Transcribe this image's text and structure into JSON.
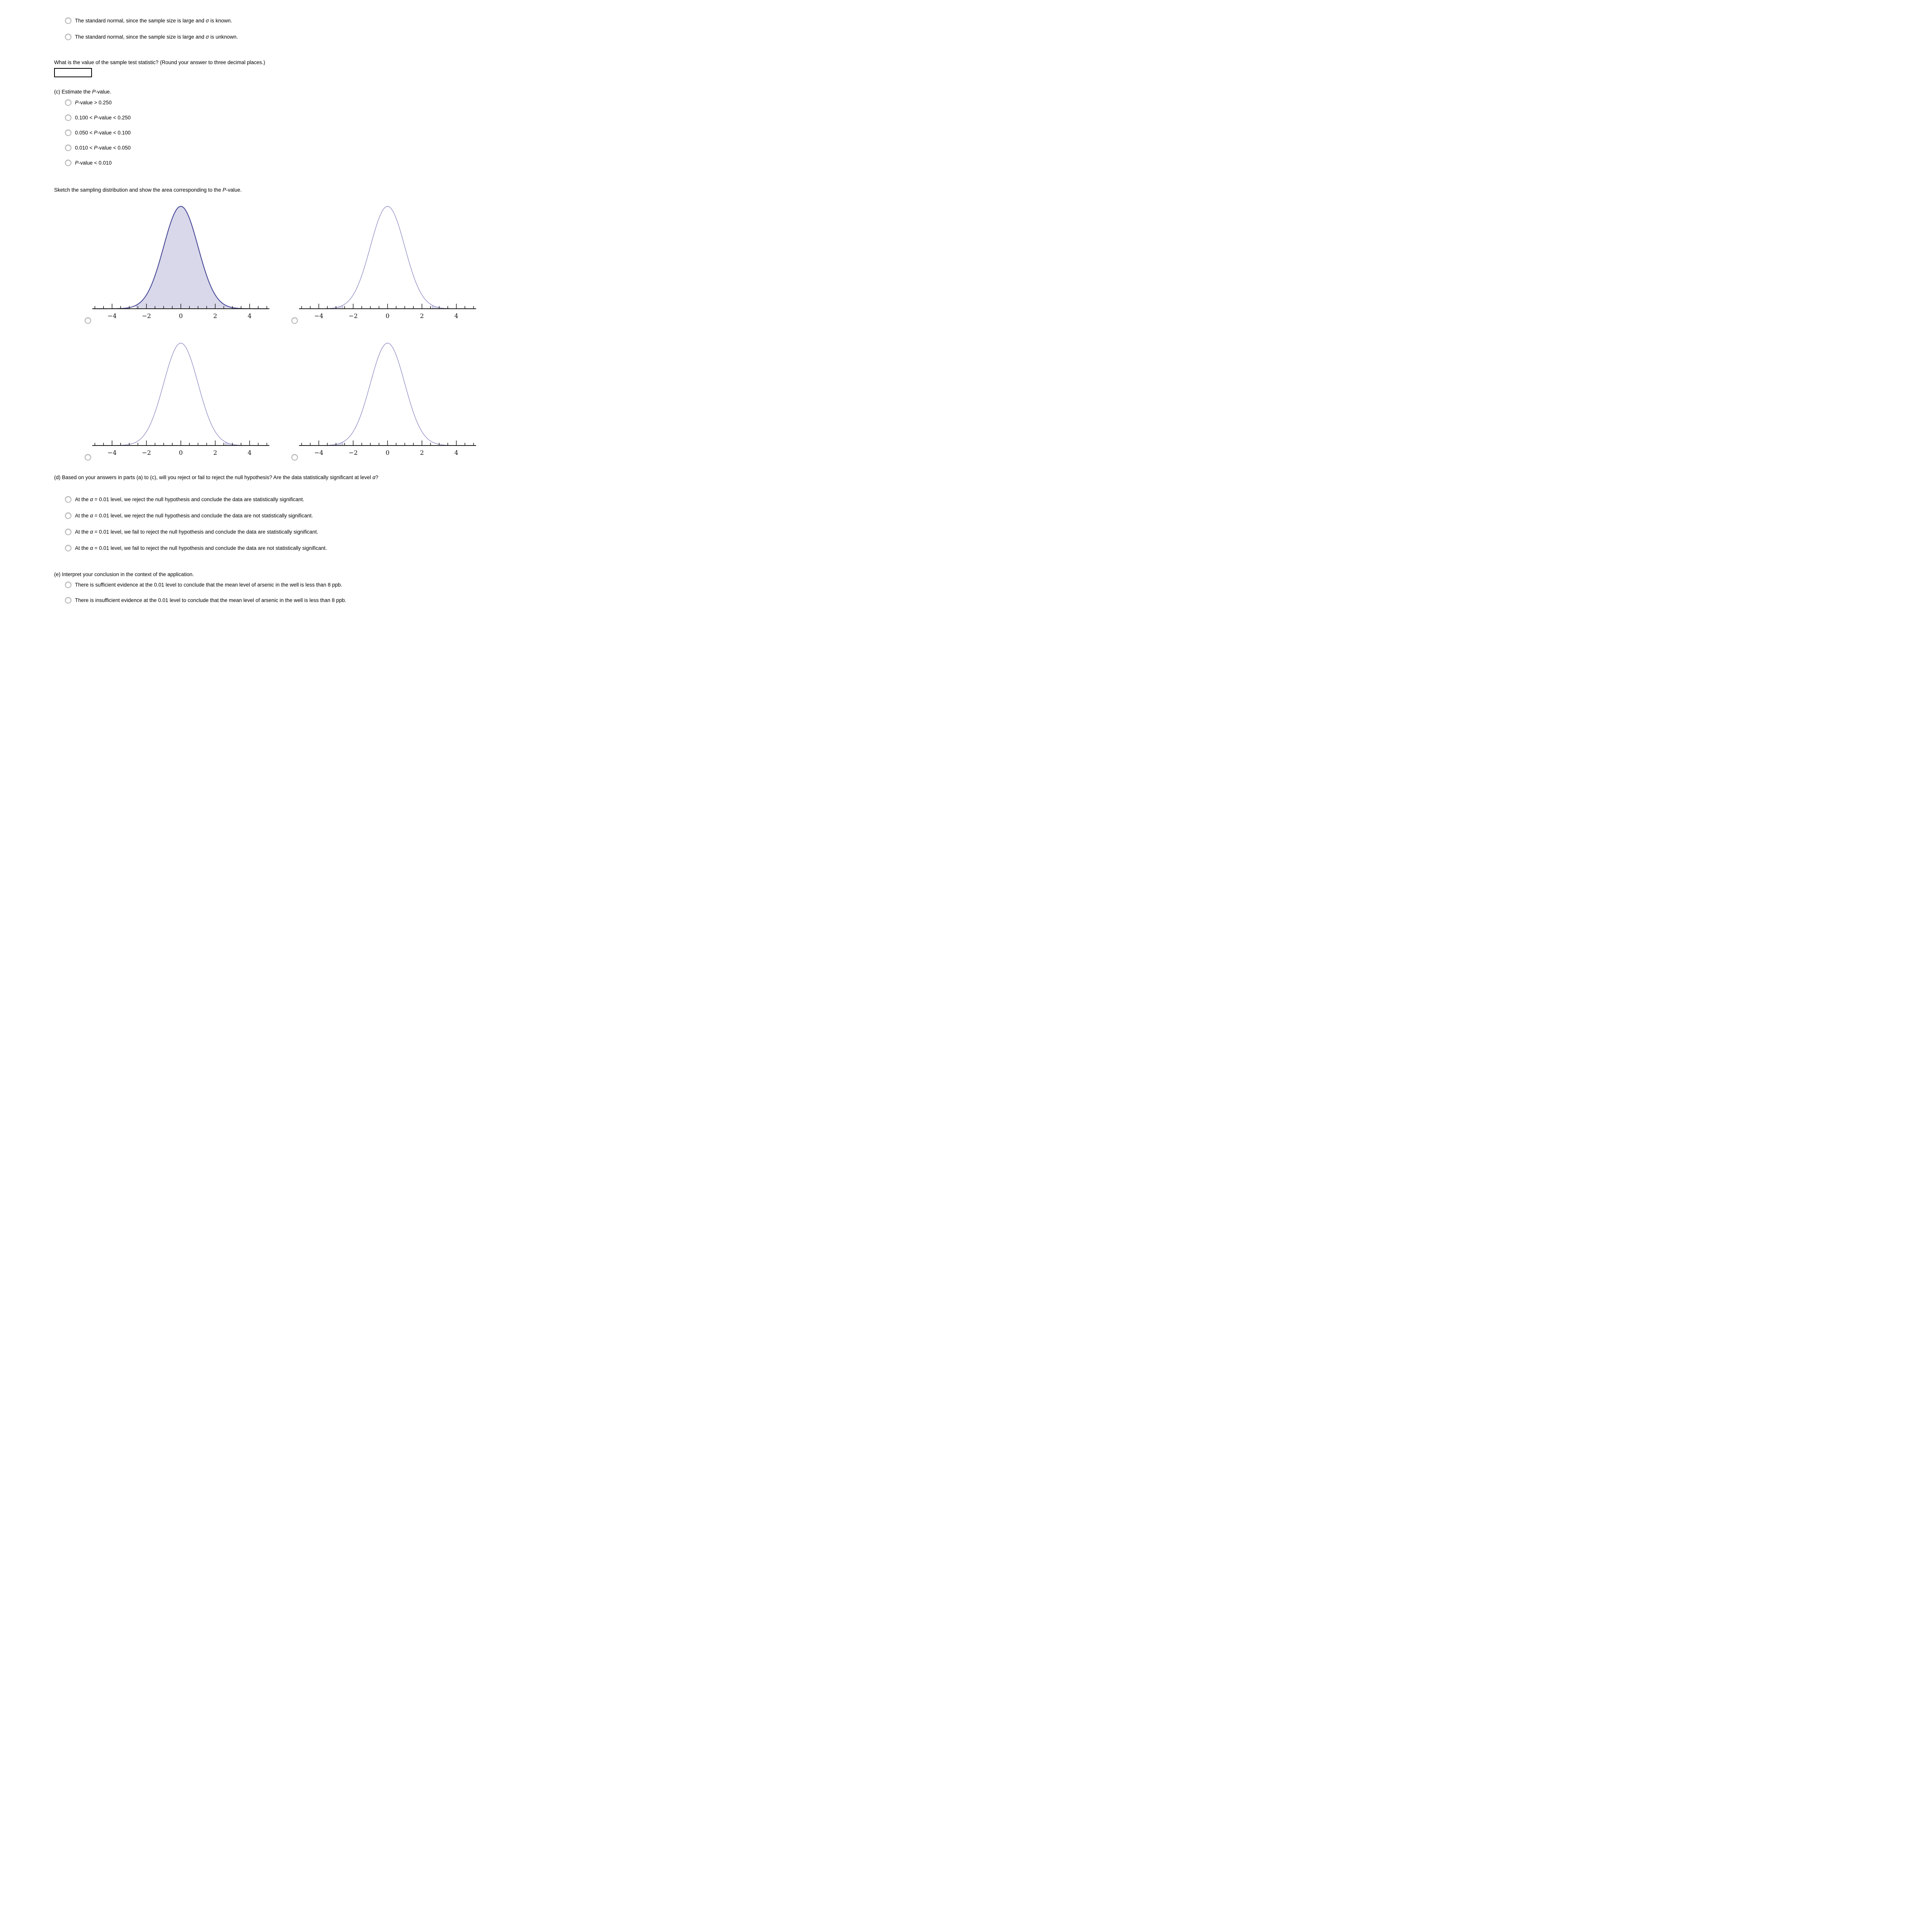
{
  "top_options": [
    [
      {
        "t": "The standard normal, since the sample size is large and "
      },
      {
        "t": "σ",
        "i": true
      },
      {
        "t": " is known."
      }
    ],
    [
      {
        "t": "The standard normal, since the sample size is large and "
      },
      {
        "t": "σ",
        "i": true
      },
      {
        "t": " is unknown."
      }
    ]
  ],
  "test_statistic": {
    "prompt": [
      {
        "t": "What is the value of the sample test statistic? (Round your answer to three decimal places.)"
      }
    ],
    "value": ""
  },
  "part_c": {
    "heading": [
      {
        "t": "(c) Estimate the "
      },
      {
        "t": "P",
        "i": true
      },
      {
        "t": "-value."
      }
    ],
    "options": [
      [
        {
          "t": "P",
          "i": true
        },
        {
          "t": "-value > 0.250"
        }
      ],
      [
        {
          "t": "0.100 < "
        },
        {
          "t": "P",
          "i": true
        },
        {
          "t": "-value < 0.250"
        }
      ],
      [
        {
          "t": "0.050 < "
        },
        {
          "t": "P",
          "i": true
        },
        {
          "t": "-value < 0.100"
        }
      ],
      [
        {
          "t": "0.010 < "
        },
        {
          "t": "P",
          "i": true
        },
        {
          "t": "-value < 0.050"
        }
      ],
      [
        {
          "t": "P",
          "i": true
        },
        {
          "t": "-value < 0.010"
        }
      ]
    ]
  },
  "sketch": {
    "heading": [
      {
        "t": "Sketch the sampling distribution and show the area corresponding to the "
      },
      {
        "t": "P",
        "i": true
      },
      {
        "t": "-value."
      }
    ]
  },
  "chart_data": {
    "type": "area",
    "description": "Four standard normal density curves used as answer choices; shaded area shows a P-value region",
    "x_range": [
      -5.15,
      5.15
    ],
    "x_tick_step": 0.5,
    "x_major_ticks": [
      -4,
      -2,
      0,
      2,
      4
    ],
    "x_tick_labels": [
      {
        "v": -4,
        "label": "−4"
      },
      {
        "v": -2,
        "label": "−2"
      },
      {
        "v": 0,
        "label": "0"
      },
      {
        "v": 2,
        "label": "2"
      },
      {
        "v": 4,
        "label": "4"
      }
    ],
    "z_cut": 2.6,
    "plots": [
      {
        "shaded_regions": [
          [
            -2.6,
            5.05
          ]
        ],
        "label": "area to the right of z = −2.6 shaded",
        "emphasis": true
      },
      {
        "shaded_regions": [
          [
            -5.05,
            -2.6
          ],
          [
            2.6,
            5.05
          ]
        ],
        "label": "both tails |z| > 2.6 shaded",
        "emphasis": false
      },
      {
        "shaded_regions": [
          [
            2.6,
            5.05
          ]
        ],
        "label": "right tail z > 2.6 shaded",
        "emphasis": false
      },
      {
        "shaded_regions": [
          [
            -5.05,
            -2.6
          ]
        ],
        "label": "left tail z < −2.6 shaded",
        "emphasis": false
      }
    ],
    "colors": {
      "curve": "#8a8ac2",
      "curve_emphasis": "#4a4a99",
      "fill": "#d8d8ea",
      "axis": "#1a1a1a",
      "tick_label": "#111111"
    }
  },
  "part_d": {
    "heading": [
      {
        "t": "(d) Based on your answers in parts (a) to (c), will you reject or fail to reject the null hypothesis? Are the data statistically significant at level "
      },
      {
        "t": "α",
        "i": true
      },
      {
        "t": "?"
      }
    ],
    "options": [
      [
        {
          "t": "At the "
        },
        {
          "t": "α",
          "i": true
        },
        {
          "t": " = 0.01 level, we reject the null hypothesis and conclude the data are statistically significant."
        }
      ],
      [
        {
          "t": "At the "
        },
        {
          "t": "α",
          "i": true
        },
        {
          "t": " = 0.01 level, we reject the null hypothesis and conclude the data are not statistically significant."
        }
      ],
      [
        {
          "t": "At the "
        },
        {
          "t": "α",
          "i": true
        },
        {
          "t": " = 0.01 level, we fail to reject the null hypothesis and conclude the data are statistically significant."
        }
      ],
      [
        {
          "t": "At the "
        },
        {
          "t": "α",
          "i": true
        },
        {
          "t": " = 0.01 level, we fail to reject the null hypothesis and conclude the data are not statistically significant."
        }
      ]
    ]
  },
  "part_e": {
    "heading": [
      {
        "t": "(e) Interpret your conclusion in the context of the application."
      }
    ],
    "options": [
      [
        {
          "t": "There is sufficient evidence at the 0.01 level to conclude that the mean level of arsenic in the well is less than 8 ppb."
        }
      ],
      [
        {
          "t": "There is insufficient evidence at the 0.01 level to conclude that the mean level of arsenic in the well is less than 8 ppb."
        }
      ]
    ]
  }
}
